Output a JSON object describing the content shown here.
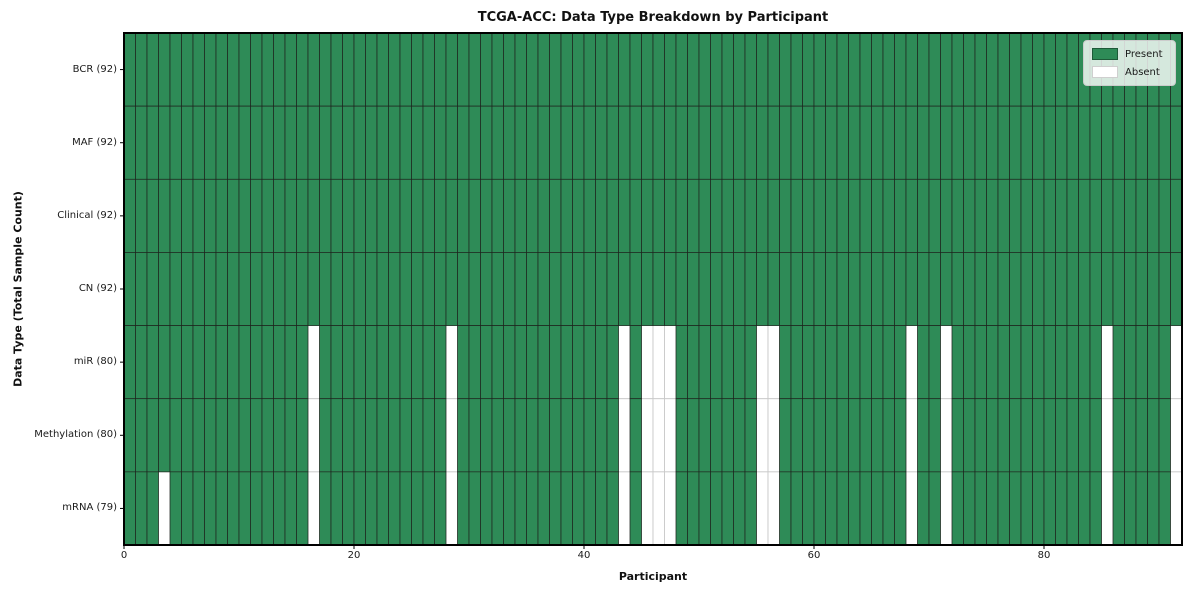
{
  "chart_data": {
    "type": "heatmap",
    "title": "TCGA-ACC: Data Type Breakdown by Participant",
    "xlabel": "Participant",
    "ylabel": "Data Type (Total Sample Count)",
    "x_axis": {
      "range": [
        0,
        92
      ],
      "ticks": [
        0,
        20,
        40,
        60,
        80
      ]
    },
    "n_participants": 92,
    "cell_states": [
      "Present",
      "Absent"
    ],
    "legend": {
      "position": "upper right",
      "entries": [
        {
          "label": "Present",
          "color": "#2e8b57"
        },
        {
          "label": "Absent",
          "color": "#ffffff"
        }
      ]
    },
    "colors": {
      "present_fill": "#2e8b57",
      "absent_fill": "#ffffff",
      "present_edge": "#1e241e",
      "absent_edge": "#c9c9c9",
      "frame": "#000000"
    },
    "grid": true,
    "rows": [
      {
        "label": "BCR (92)",
        "data_type": "BCR",
        "present_count": 92,
        "absent_participants": []
      },
      {
        "label": "MAF (92)",
        "data_type": "MAF",
        "present_count": 92,
        "absent_participants": []
      },
      {
        "label": "Clinical (92)",
        "data_type": "Clinical",
        "present_count": 92,
        "absent_participants": []
      },
      {
        "label": "CN (92)",
        "data_type": "CN",
        "present_count": 92,
        "absent_participants": []
      },
      {
        "label": "miR (80)",
        "data_type": "miR",
        "present_count": 80,
        "absent_participants": [
          16,
          28,
          43,
          45,
          46,
          47,
          55,
          56,
          68,
          71,
          85,
          91
        ]
      },
      {
        "label": "Methylation (80)",
        "data_type": "Methylation",
        "present_count": 80,
        "absent_participants": [
          16,
          28,
          43,
          45,
          46,
          47,
          55,
          56,
          68,
          71,
          85,
          91
        ]
      },
      {
        "label": "mRNA (79)",
        "data_type": "mRNA",
        "present_count": 79,
        "absent_participants": [
          3,
          16,
          28,
          43,
          45,
          46,
          47,
          55,
          56,
          68,
          71,
          85,
          91
        ]
      }
    ]
  }
}
